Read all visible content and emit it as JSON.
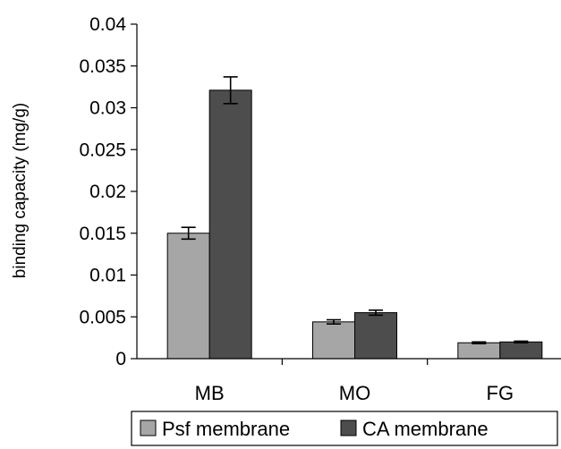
{
  "chart_data": {
    "type": "bar",
    "categories": [
      "MB",
      "MO",
      "FG"
    ],
    "series": [
      {
        "name": "Psf membrane",
        "values": [
          0.015,
          0.0044,
          0.0019
        ],
        "errors": [
          0.0007,
          0.00025,
          0.0001
        ],
        "color": "#a6a6a6"
      },
      {
        "name": "CA membrane",
        "values": [
          0.0321,
          0.0055,
          0.002
        ],
        "errors": [
          0.0016,
          0.0003,
          0.0001
        ],
        "color": "#4d4d4d"
      }
    ],
    "title": "",
    "xlabel": "",
    "ylabel": "binding capacity (mg/g)",
    "ylim": [
      0,
      0.04
    ],
    "yticks": [
      "0",
      "0.005",
      "0.01",
      "0.015",
      "0.02",
      "0.025",
      "0.03",
      "0.035",
      "0.04"
    ],
    "grid": false,
    "legend_position": "bottom"
  }
}
